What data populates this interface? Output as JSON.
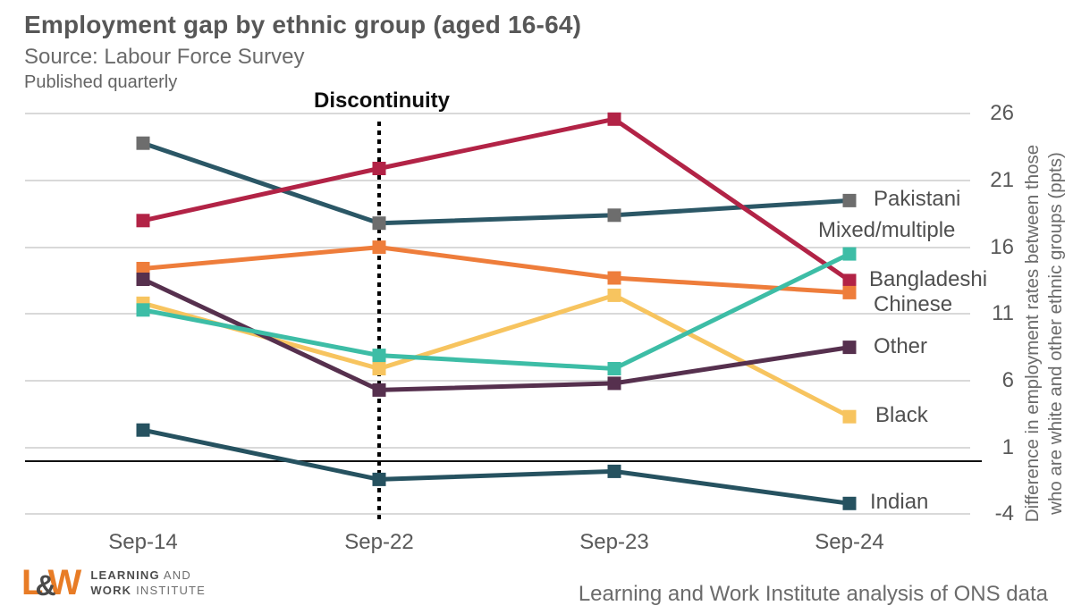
{
  "header": {
    "title": "Employment gap by ethnic group (aged 16-64)",
    "source": "Source: Labour Force Survey",
    "published": "Published quarterly"
  },
  "chart_data": {
    "type": "line",
    "title": "Employment gap by ethnic group (aged 16-64)",
    "x_categories": [
      "Sep-14",
      "Sep-22",
      "Sep-23",
      "Sep-24"
    ],
    "yticks": [
      26,
      21,
      16,
      11,
      6,
      1,
      -4
    ],
    "ylim": [
      -6,
      27.5
    ],
    "grid": "horizontal-only",
    "zero_line": true,
    "legend_position": "right-of-last-point",
    "ylabel_line1": "Difference in employment rates between those",
    "ylabel_line2": "who are white and other ethnic groups (ppts)",
    "annotation": {
      "label": "Discontinuity",
      "x_category": "Sep-22"
    },
    "series": [
      {
        "name": "Pakistani",
        "color": "#2b5766",
        "marker_color": "#6d6d6d",
        "values": [
          23.8,
          17.8,
          18.4,
          19.5
        ],
        "label_dx": 0,
        "label_dy": 0
      },
      {
        "name": "Bangladeshi",
        "color": "#b22346",
        "values": [
          18.0,
          21.9,
          25.6,
          13.5
        ],
        "label_dx": -5,
        "label_dy": 0
      },
      {
        "name": "Chinese",
        "color": "#ee7d3b",
        "values": [
          14.4,
          16.0,
          13.7,
          12.6
        ],
        "label_dx": 0,
        "label_dy": 15
      },
      {
        "name": "Black",
        "color": "#f7c45f",
        "values": [
          11.8,
          6.9,
          12.4,
          3.3
        ],
        "label_dx": 2,
        "label_dy": 0
      },
      {
        "name": "Other",
        "color": "#56304e",
        "values": [
          13.6,
          5.3,
          5.8,
          8.5
        ],
        "label_dx": 0,
        "label_dy": 0
      },
      {
        "name": "Mixed/multiple",
        "color": "#3dbda6",
        "values": [
          11.3,
          7.9,
          6.9,
          15.5
        ],
        "label_dx": -62,
        "label_dy": -25
      },
      {
        "name": "Indian",
        "color": "#265260",
        "values": [
          2.3,
          -1.4,
          -0.8,
          -3.2
        ],
        "label_dx": -4,
        "label_dy": 0
      }
    ]
  },
  "footer": {
    "logo_mark_l": "L",
    "logo_mark_amp": "&",
    "logo_mark_w": "W",
    "logo_line1_bold": "LEARNING",
    "logo_line1_rest": " AND",
    "logo_line2_bold": "WORK",
    "logo_line2_rest": " INSTITUTE",
    "caption": "Learning and Work Institute analysis of ONS data"
  },
  "colors": {
    "accent_orange": "#e87c26",
    "text_dark": "#575757",
    "text_gray": "#6b6b6b",
    "gridline": "#d9d9d9"
  }
}
